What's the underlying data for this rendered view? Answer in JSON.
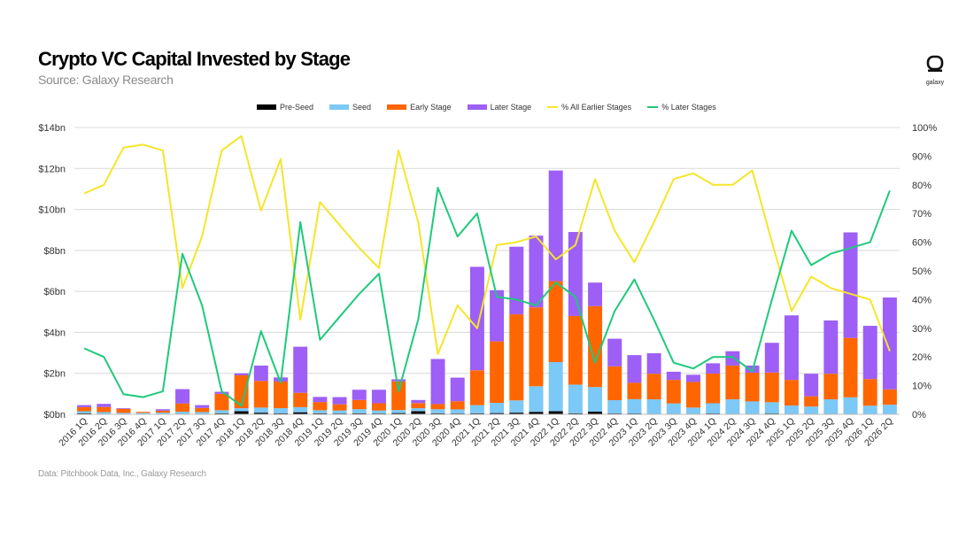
{
  "header": {
    "title": "Crypto VC Capital Invested by Stage",
    "subtitle": "Source: Galaxy Research",
    "logo_text": "galaxy"
  },
  "footer": {
    "note": "Data: Pitchbook Data, Inc., Galaxy Research"
  },
  "colors": {
    "pre_seed": "#000000",
    "seed": "#7cc8f6",
    "early": "#ff6600",
    "later": "#9d5ff5",
    "pct_earlier": "#f5e52a",
    "pct_later": "#1ec97c",
    "grid": "#d9d9d9",
    "axis_text": "#333333"
  },
  "chart_data": {
    "type": "bar",
    "stacked": true,
    "title": "Crypto VC Capital Invested by Stage",
    "categories": [
      "2016 1Q",
      "2016 2Q",
      "2016 3Q",
      "2016 4Q",
      "2017 1Q",
      "2017 2Q",
      "2017 3Q",
      "2017 4Q",
      "2018 1Q",
      "2018 2Q",
      "2018 3Q",
      "2018 4Q",
      "2019 1Q",
      "2019 2Q",
      "2019 3Q",
      "2019 4Q",
      "2020 1Q",
      "2020 2Q",
      "2020 3Q",
      "2020 4Q",
      "2021 1Q",
      "2021 2Q",
      "2021 3Q",
      "2021 4Q",
      "2022 1Q",
      "2022 2Q",
      "2022 3Q",
      "2022 4Q",
      "2023 1Q",
      "2023 2Q",
      "2023 3Q",
      "2023 4Q",
      "2024 1Q",
      "2024 2Q",
      "2024 3Q",
      "2024 4Q",
      "2025 1Q",
      "2025 2Q",
      "2025 3Q",
      "2025 4Q",
      "2026 1Q",
      "2026 2Q"
    ],
    "y_left": {
      "ylim": [
        0,
        14
      ],
      "ticks": [
        0,
        2,
        4,
        6,
        8,
        10,
        12,
        14
      ],
      "tick_labels": [
        "$0bn",
        "$2bn",
        "$4bn",
        "$6bn",
        "$8bn",
        "$10bn",
        "$12bn",
        "$14bn"
      ]
    },
    "y_right": {
      "ylim": [
        0,
        100
      ],
      "ticks": [
        0,
        10,
        20,
        30,
        40,
        50,
        60,
        70,
        80,
        90,
        100
      ],
      "tick_labels": [
        "0%",
        "10%",
        "20%",
        "30%",
        "40%",
        "50%",
        "60%",
        "70%",
        "80%",
        "90%",
        "100%"
      ]
    },
    "grid": true,
    "legend_position": "top-center",
    "series": [
      {
        "name": "Pre-Seed",
        "kind": "bar",
        "color_key": "pre_seed",
        "values": [
          0.05,
          0.03,
          0.02,
          0.02,
          0.02,
          0.03,
          0.03,
          0.05,
          0.15,
          0.08,
          0.05,
          0.1,
          0.05,
          0.04,
          0.05,
          0.04,
          0.06,
          0.15,
          0.05,
          0.04,
          0.05,
          0.06,
          0.08,
          0.12,
          0.15,
          0.05,
          0.13,
          0.04,
          0.04,
          0.03,
          0.03,
          0.03,
          0.04,
          0.03,
          0.03,
          0.04,
          0.03,
          0.03,
          0.03,
          0.03,
          0.02,
          0.02
        ]
      },
      {
        "name": "Seed",
        "kind": "bar",
        "color_key": "seed",
        "values": [
          0.1,
          0.08,
          0.05,
          0.05,
          0.06,
          0.1,
          0.08,
          0.15,
          0.15,
          0.25,
          0.25,
          0.25,
          0.15,
          0.15,
          0.2,
          0.15,
          0.15,
          0.15,
          0.2,
          0.2,
          0.4,
          0.5,
          0.6,
          1.25,
          2.4,
          1.4,
          1.2,
          0.65,
          0.7,
          0.7,
          0.5,
          0.3,
          0.5,
          0.7,
          0.6,
          0.55,
          0.4,
          0.35,
          0.7,
          0.8,
          0.4,
          0.45
        ]
      },
      {
        "name": "Early Stage",
        "kind": "bar",
        "color_key": "early",
        "values": [
          0.2,
          0.25,
          0.2,
          0.05,
          0.1,
          0.4,
          0.2,
          0.8,
          1.6,
          1.3,
          1.3,
          0.7,
          0.4,
          0.3,
          0.45,
          0.35,
          1.4,
          0.25,
          0.25,
          0.4,
          1.7,
          3.0,
          4.2,
          3.85,
          3.95,
          3.35,
          3.95,
          1.65,
          0.8,
          1.25,
          1.15,
          1.25,
          1.45,
          1.65,
          1.4,
          1.45,
          1.25,
          0.5,
          1.25,
          2.9,
          1.3,
          0.75
        ]
      },
      {
        "name": "Later Stage",
        "kind": "bar",
        "color_key": "later",
        "values": [
          0.1,
          0.15,
          0.03,
          0.0,
          0.07,
          0.7,
          0.14,
          0.1,
          0.1,
          0.75,
          0.2,
          2.25,
          0.25,
          0.35,
          0.5,
          0.66,
          0.1,
          0.15,
          2.2,
          1.15,
          5.05,
          2.5,
          3.3,
          3.5,
          5.4,
          4.1,
          1.15,
          1.35,
          1.35,
          1.0,
          0.4,
          0.35,
          0.5,
          0.7,
          0.35,
          1.45,
          3.15,
          1.1,
          2.6,
          5.15,
          2.6,
          4.48
        ]
      },
      {
        "name": "% All Earlier Stages",
        "kind": "line",
        "axis": "right",
        "color_key": "pct_earlier",
        "values": [
          77,
          80,
          93,
          94,
          92,
          44,
          62,
          92,
          97,
          71,
          89,
          33,
          74,
          66,
          58,
          51,
          92,
          67,
          21,
          38,
          30,
          59,
          60,
          62,
          54,
          59,
          82,
          64,
          53,
          67,
          82,
          84,
          80,
          80,
          85,
          60,
          36,
          48,
          44,
          42,
          40,
          22
        ]
      },
      {
        "name": "% Later Stages",
        "kind": "line",
        "axis": "right",
        "color_key": "pct_later",
        "values": [
          23,
          20,
          7,
          6,
          8,
          56,
          38,
          8,
          3,
          29,
          11,
          67,
          26,
          34,
          42,
          49,
          8,
          33,
          79,
          62,
          70,
          41,
          40,
          38,
          46,
          41,
          18,
          36,
          47,
          33,
          18,
          16,
          20,
          20,
          15,
          40,
          64,
          52,
          56,
          58,
          60,
          78
        ]
      }
    ]
  }
}
